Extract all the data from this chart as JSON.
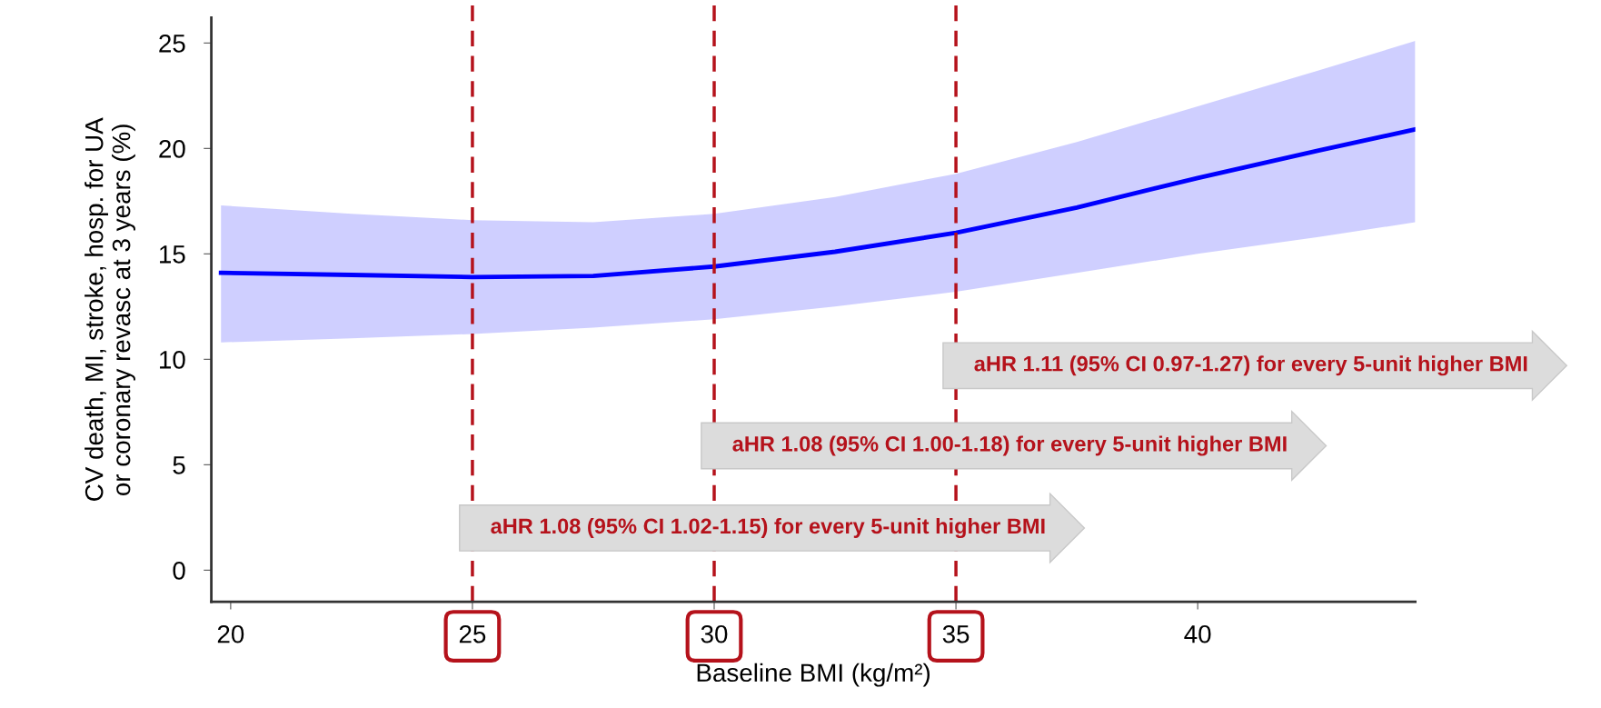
{
  "chart_data": {
    "type": "line",
    "xlabel": "Baseline BMI (kg/m²)",
    "ylabel": "CV death, MI, stroke, hosp. for UA\nor coronary revasc at 3 years (%)",
    "x": [
      19.8,
      22.5,
      25,
      27.5,
      30,
      32.5,
      35,
      37.5,
      40,
      42.5,
      44.5
    ],
    "series": [
      {
        "color": "#0000ff",
        "values": [
          14.1,
          14.0,
          13.9,
          13.95,
          14.4,
          15.1,
          16.0,
          17.2,
          18.6,
          19.9,
          20.9
        ],
        "lower": [
          10.8,
          11.0,
          11.2,
          11.5,
          11.9,
          12.5,
          13.2,
          14.1,
          15.0,
          15.8,
          16.5
        ],
        "upper": [
          17.3,
          16.9,
          16.6,
          16.5,
          16.9,
          17.7,
          18.8,
          20.3,
          22.0,
          23.7,
          25.1
        ]
      }
    ],
    "xlim": [
      19.6,
      44.5
    ],
    "ylim": [
      -1.5,
      26.2
    ],
    "xticks": [
      20,
      25,
      30,
      35,
      40
    ],
    "yticks": [
      0,
      5,
      10,
      15,
      20,
      25
    ],
    "ref_lines": [
      {
        "axis": "x",
        "value": 25,
        "color": "#b5121b",
        "line_style": "dashed"
      },
      {
        "axis": "x",
        "value": 30,
        "color": "#b5121b",
        "line_style": "dashed"
      },
      {
        "axis": "x",
        "value": 35,
        "color": "#b5121b",
        "line_style": "dashed"
      }
    ],
    "annotations": [
      {
        "text": "aHR 1.08 (95% CI 1.02-1.15) for every 5-unit higher BMI",
        "x": 25,
        "y": 2.0
      },
      {
        "text": "aHR 1.08 (95% CI 1.00-1.18) for every 5-unit higher BMI",
        "x": 30,
        "y": 5.9
      },
      {
        "text": "aHR 1.11 (95% CI 0.97-1.27) for every 5-unit higher BMI",
        "x": 35,
        "y": 9.7
      }
    ],
    "grid": false,
    "legend": false,
    "marker": "none",
    "line_style": "solid"
  }
}
